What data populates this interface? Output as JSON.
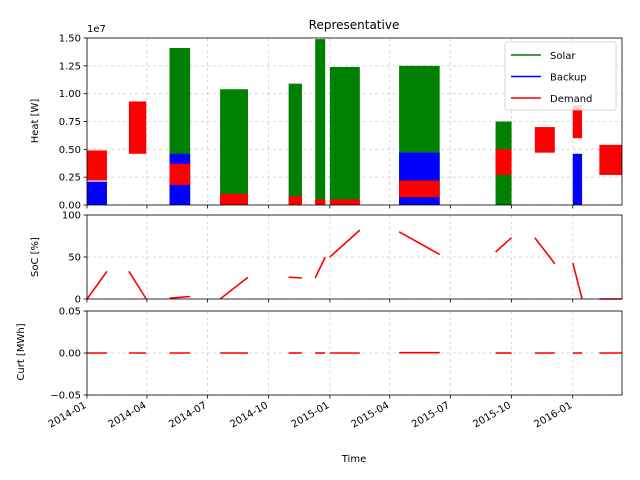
{
  "chart_data": [
    {
      "type": "bar",
      "title": "Representative",
      "ylabel": "Heat [W]",
      "offset_label": "1e7",
      "ylim": [
        0,
        15000000
      ],
      "yticks": [
        0,
        2500000,
        5000000,
        7500000,
        10000000,
        12500000,
        15000000
      ],
      "ytick_labels": [
        "0.00",
        "0.25",
        "0.50",
        "0.75",
        "1.00",
        "1.25",
        "1.50"
      ],
      "grid": true,
      "legend_position": "top-right",
      "legend": [
        {
          "label": "Solar",
          "color": "#008000"
        },
        {
          "label": "Backup",
          "color": "#0000ff"
        },
        {
          "label": "Demand",
          "color": "#ff0000"
        }
      ],
      "segments": [
        {
          "start": "2014-01-01",
          "end": "2014-01-31",
          "solar": 0,
          "backup": 2100000,
          "demand_low": 2200000,
          "demand_high": 4900000
        },
        {
          "start": "2014-03-05",
          "end": "2014-03-31",
          "solar": 0,
          "backup": 0,
          "demand_low": 4600000,
          "demand_high": 9300000
        },
        {
          "start": "2014-05-05",
          "end": "2014-06-05",
          "solar": 14100000,
          "backup": 4600000,
          "demand_low": 1800000,
          "demand_high": 3700000
        },
        {
          "start": "2014-07-20",
          "end": "2014-08-31",
          "solar": 10400000,
          "backup": 200000,
          "demand_low": 0,
          "demand_high": 1000000
        },
        {
          "start": "2014-10-31",
          "end": "2014-11-20",
          "solar": 10900000,
          "backup": 0,
          "demand_low": 0,
          "demand_high": 800000
        },
        {
          "start": "2014-12-10",
          "end": "2014-12-25",
          "solar": 14900000,
          "backup": 0,
          "demand_low": 0,
          "demand_high": 500000
        },
        {
          "start": "2015-01-01",
          "end": "2015-02-15",
          "solar": 12400000,
          "backup": 0,
          "demand_low": 0,
          "demand_high": 500000
        },
        {
          "start": "2015-04-15",
          "end": "2015-06-15",
          "solar": 12500000,
          "backup": 4700000,
          "demand_low": 700000,
          "demand_high": 2200000
        },
        {
          "start": "2015-09-07",
          "end": "2015-10-01",
          "solar": 7500000,
          "backup": 0,
          "demand_low": 2700000,
          "demand_high": 5000000
        },
        {
          "start": "2015-11-05",
          "end": "2015-12-05",
          "solar": 0,
          "backup": 0,
          "demand_low": 4700000,
          "demand_high": 7000000
        },
        {
          "start": "2016-01-01",
          "end": "2016-01-15",
          "solar": 0,
          "backup": 4600000,
          "demand_low": 6000000,
          "demand_high": 9000000
        },
        {
          "start": "2016-02-10",
          "end": "2016-03-15",
          "solar": 0,
          "backup": 0,
          "demand_low": 2700000,
          "demand_high": 5400000
        }
      ]
    },
    {
      "type": "line",
      "ylabel": "SoC [%]",
      "ylim": [
        0,
        100
      ],
      "yticks": [
        0,
        50,
        100
      ],
      "ytick_labels": [
        "0",
        "50",
        "100"
      ],
      "grid": true,
      "series": [
        {
          "color": "#ff0000",
          "points": [
            [
              "2014-01-01",
              0
            ],
            [
              "2014-01-31",
              33
            ]
          ]
        },
        {
          "color": "#ff0000",
          "points": [
            [
              "2014-03-05",
              33
            ],
            [
              "2014-03-31",
              0
            ]
          ]
        },
        {
          "color": "#ff0000",
          "points": [
            [
              "2014-05-05",
              1
            ],
            [
              "2014-06-05",
              3
            ]
          ]
        },
        {
          "color": "#ff0000",
          "points": [
            [
              "2014-07-20",
              0
            ],
            [
              "2014-08-31",
              26
            ]
          ]
        },
        {
          "color": "#ff0000",
          "points": [
            [
              "2014-10-31",
              26
            ],
            [
              "2014-11-20",
              25
            ]
          ]
        },
        {
          "color": "#ff0000",
          "points": [
            [
              "2014-12-10",
              25
            ],
            [
              "2014-12-25",
              50
            ]
          ]
        },
        {
          "color": "#ff0000",
          "points": [
            [
              "2015-01-01",
              50
            ],
            [
              "2015-02-15",
              82
            ]
          ]
        },
        {
          "color": "#ff0000",
          "points": [
            [
              "2015-04-15",
              80
            ],
            [
              "2015-06-15",
              53
            ]
          ]
        },
        {
          "color": "#ff0000",
          "points": [
            [
              "2015-09-07",
              56
            ],
            [
              "2015-10-01",
              73
            ]
          ]
        },
        {
          "color": "#ff0000",
          "points": [
            [
              "2015-11-05",
              73
            ],
            [
              "2015-12-05",
              42
            ]
          ]
        },
        {
          "color": "#ff0000",
          "points": [
            [
              "2016-01-01",
              43
            ],
            [
              "2016-01-15",
              0
            ]
          ]
        },
        {
          "color": "#ff0000",
          "points": [
            [
              "2016-02-10",
              0
            ],
            [
              "2016-03-15",
              0
            ]
          ]
        }
      ]
    },
    {
      "type": "line",
      "ylabel": "Curt [MWh]",
      "xlabel": "Time",
      "ylim": [
        -0.05,
        0.05
      ],
      "yticks": [
        -0.05,
        0,
        0.05
      ],
      "ytick_labels": [
        "−0.05",
        "0.00",
        "0.05"
      ],
      "grid": true,
      "xlim": [
        "2014-01-01",
        "2016-03-15"
      ],
      "xticks": [
        "2014-01-01",
        "2014-04-01",
        "2014-07-01",
        "2014-10-01",
        "2015-01-01",
        "2015-04-01",
        "2015-07-01",
        "2015-10-01",
        "2016-01-01"
      ],
      "xtick_labels": [
        "2014-01",
        "2014-04",
        "2014-07",
        "2014-10",
        "2015-01",
        "2015-04",
        "2015-07",
        "2015-10",
        "2016-01"
      ],
      "series": [
        {
          "color": "#ff0000",
          "points": [
            [
              "2014-01-01",
              0
            ],
            [
              "2014-01-31",
              0
            ]
          ]
        },
        {
          "color": "#ff0000",
          "points": [
            [
              "2014-03-05",
              0
            ],
            [
              "2014-03-31",
              0
            ]
          ]
        },
        {
          "color": "#ff0000",
          "points": [
            [
              "2014-05-05",
              0
            ],
            [
              "2014-06-05",
              0
            ]
          ]
        },
        {
          "color": "#ff0000",
          "points": [
            [
              "2014-07-20",
              0
            ],
            [
              "2014-08-31",
              0
            ]
          ]
        },
        {
          "color": "#ff0000",
          "points": [
            [
              "2014-10-31",
              0
            ],
            [
              "2014-11-20",
              0
            ]
          ]
        },
        {
          "color": "#ff0000",
          "points": [
            [
              "2014-12-10",
              0
            ],
            [
              "2014-12-25",
              0
            ]
          ]
        },
        {
          "color": "#ff0000",
          "points": [
            [
              "2015-01-01",
              0
            ],
            [
              "2015-02-15",
              0
            ]
          ]
        },
        {
          "color": "#ff0000",
          "points": [
            [
              "2015-04-15",
              0.0003
            ],
            [
              "2015-06-15",
              0.0003
            ]
          ]
        },
        {
          "color": "#ff0000",
          "points": [
            [
              "2015-09-07",
              0
            ],
            [
              "2015-10-01",
              0
            ]
          ]
        },
        {
          "color": "#ff0000",
          "points": [
            [
              "2015-11-05",
              0
            ],
            [
              "2015-12-05",
              0
            ]
          ]
        },
        {
          "color": "#ff0000",
          "points": [
            [
              "2016-01-01",
              0
            ],
            [
              "2016-01-15",
              0
            ]
          ]
        },
        {
          "color": "#ff0000",
          "points": [
            [
              "2016-02-10",
              0
            ],
            [
              "2016-03-15",
              0
            ]
          ]
        }
      ]
    }
  ]
}
